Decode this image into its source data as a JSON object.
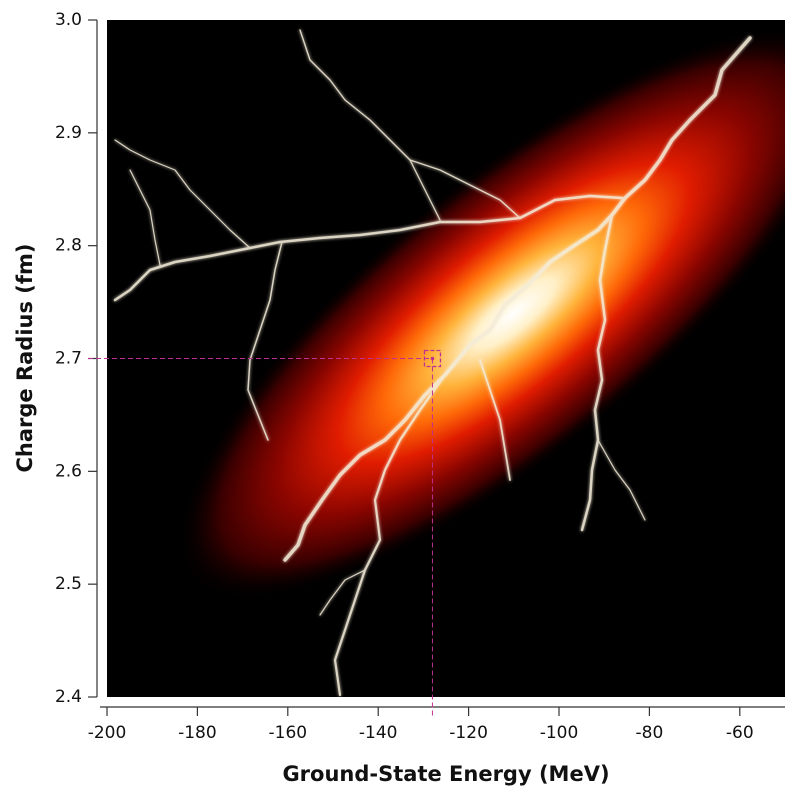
{
  "chart_data": {
    "type": "density",
    "x_label": "Ground-State Energy (MeV)",
    "y_label": "Charge Radius (fm)",
    "xlim": [
      -200,
      -50
    ],
    "ylim": [
      2.4,
      3.0
    ],
    "xticks": [
      -200,
      -180,
      -160,
      -140,
      -120,
      -100,
      -80,
      -60
    ],
    "yticks": [
      2.4,
      2.5,
      2.6,
      2.7,
      2.8,
      2.9,
      {
        "value": 3,
        "label": "3.0"
      }
    ],
    "density": {
      "mean": [
        -110,
        2.74
      ],
      "sd": [
        22,
        0.075
      ],
      "correlation": 0.8
    },
    "marker": {
      "x": -128,
      "y": 2.7,
      "color": "#c03090"
    }
  }
}
